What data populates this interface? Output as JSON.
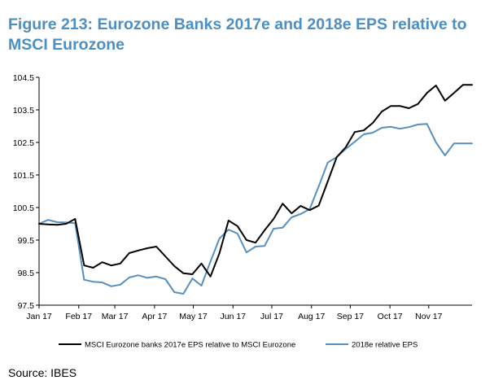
{
  "chart_data": {
    "type": "line",
    "title": "Figure 213: Eurozone Banks 2017e and 2018e EPS relative to MSCI Eurozone",
    "xlabel": "",
    "ylabel": "",
    "ylim": [
      97.5,
      104.5
    ],
    "yticks": [
      "104.5",
      "103.5",
      "102.5",
      "101.5",
      "100.5",
      "99.5",
      "98.5",
      "97.5"
    ],
    "ytick_values": [
      104.5,
      103.5,
      102.5,
      101.5,
      100.5,
      99.5,
      98.5,
      97.5
    ],
    "xlim": [
      0,
      48
    ],
    "xticks": [
      "Jan 17",
      "Feb 17",
      "Mar 17",
      "Apr 17",
      "May 17",
      "Jun 17",
      "Jul 17",
      "Aug 17",
      "Sep 17",
      "Oct 17",
      "Nov 17"
    ],
    "xtick_values": [
      0,
      4.4,
      8.4,
      12.8,
      17.1,
      21.5,
      25.8,
      30.2,
      34.5,
      38.9,
      43.2
    ],
    "legend_position": "bottom",
    "series": [
      {
        "name": "MSCI Eurozone banks 2017e EPS relative to MSCI Eurozone",
        "color": "#000000",
        "x": [
          0,
          1,
          2,
          3,
          4,
          5,
          6,
          7,
          8,
          9,
          10,
          11,
          12,
          13,
          14,
          15,
          16,
          17,
          18,
          19,
          20,
          21,
          22,
          23,
          24,
          25,
          26,
          27,
          28,
          29,
          30,
          31,
          32,
          33,
          34,
          35,
          36,
          37,
          38,
          39,
          40,
          41,
          42,
          43,
          44,
          45,
          46,
          47,
          48
        ],
        "values": [
          100.0,
          99.98,
          99.97,
          100.0,
          100.15,
          98.72,
          98.65,
          98.82,
          98.72,
          98.78,
          99.1,
          99.18,
          99.25,
          99.3,
          99.0,
          98.7,
          98.48,
          98.45,
          98.78,
          98.38,
          99.1,
          100.1,
          99.93,
          99.5,
          99.42,
          99.8,
          100.15,
          100.62,
          100.32,
          100.55,
          100.42,
          100.56,
          101.3,
          102.05,
          102.35,
          102.82,
          102.87,
          103.1,
          103.45,
          103.62,
          103.62,
          103.55,
          103.68,
          104.02,
          104.25,
          103.78,
          104.02,
          104.27,
          104.27
        ]
      },
      {
        "name": "2018e relative EPS",
        "color": "#5a8fbc",
        "x": [
          0,
          1,
          2,
          3,
          4,
          5,
          6,
          7,
          8,
          9,
          10,
          11,
          12,
          13,
          14,
          15,
          16,
          17,
          18,
          19,
          20,
          21,
          22,
          23,
          24,
          25,
          26,
          27,
          28,
          29,
          30,
          31,
          32,
          33,
          34,
          35,
          36,
          37,
          38,
          39,
          40,
          41,
          42,
          43,
          44,
          45,
          46,
          47,
          48
        ],
        "values": [
          100.0,
          100.12,
          100.05,
          100.04,
          100.02,
          98.28,
          98.22,
          98.2,
          98.08,
          98.13,
          98.35,
          98.42,
          98.34,
          98.38,
          98.3,
          97.9,
          97.85,
          98.32,
          98.1,
          98.84,
          99.55,
          99.82,
          99.7,
          99.12,
          99.3,
          99.32,
          99.85,
          99.88,
          100.2,
          100.3,
          100.45,
          101.15,
          101.88,
          102.05,
          102.3,
          102.52,
          102.75,
          102.8,
          102.95,
          102.98,
          102.92,
          102.97,
          103.05,
          103.07,
          102.5,
          102.1,
          102.47,
          102.47,
          102.47
        ]
      }
    ]
  },
  "source": "Source: IBES"
}
